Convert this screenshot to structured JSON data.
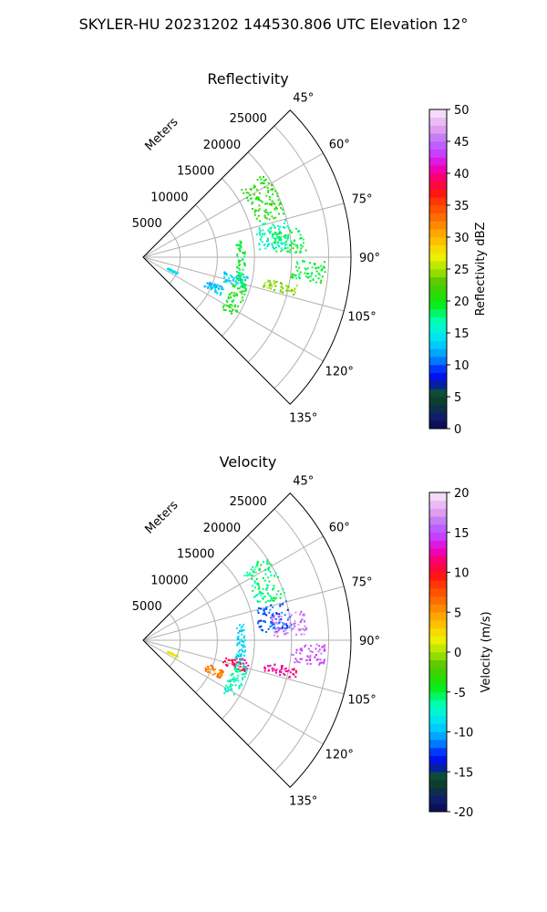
{
  "figure": {
    "suptitle": "SKYLER-HU  20231202  144530.806 UTC Elevation 12°"
  },
  "chart_data": [
    {
      "type": "polar-scatter",
      "title": "Reflectivity",
      "radial_label": "Meters",
      "radial_ticks": [
        "5000",
        "10000",
        "15000",
        "20000",
        "25000"
      ],
      "radial_tick_values": [
        5000,
        10000,
        15000,
        20000,
        25000
      ],
      "rlim": [
        0,
        28000
      ],
      "theta_range_deg": [
        45,
        135
      ],
      "theta_ticks": [
        "45°",
        "60°",
        "75°",
        "90°",
        "105°",
        "120°",
        "135°"
      ],
      "theta_tick_values": [
        45,
        60,
        75,
        90,
        105,
        120,
        135
      ],
      "colorbar": {
        "label": "Reflectivity dBZ",
        "min": 0,
        "max": 50,
        "ticks": [
          "0",
          "5",
          "10",
          "15",
          "20",
          "25",
          "30",
          "35",
          "40",
          "45",
          "50"
        ],
        "tick_values": [
          0,
          5,
          10,
          15,
          20,
          25,
          30,
          35,
          40,
          45,
          50
        ]
      },
      "echo_clusters": [
        {
          "theta": [
            74,
            86
          ],
          "r": [
            15500,
            20000
          ],
          "value": 16
        },
        {
          "theta": [
            79,
            88
          ],
          "r": [
            17500,
            22000
          ],
          "value": 19
        },
        {
          "theta": [
            91,
            98
          ],
          "r": [
            20000,
            24500
          ],
          "value": 19
        },
        {
          "theta": [
            100,
            107
          ],
          "r": [
            11000,
            14500
          ],
          "value": 14
        },
        {
          "theta": [
            110,
            116
          ],
          "r": [
            9000,
            11500
          ],
          "value": 13
        },
        {
          "theta": [
            113,
            116
          ],
          "r": [
            3500,
            5000
          ],
          "value": 14
        },
        {
          "theta": [
            80,
            104
          ],
          "r": [
            12500,
            13700
          ],
          "value": 19
        },
        {
          "theta": [
            104,
            123
          ],
          "r": [
            12500,
            14500
          ],
          "value": 20
        },
        {
          "theta": [
            55,
            73
          ],
          "r": [
            16000,
            20000
          ],
          "value": 21
        },
        {
          "theta": [
            100,
            104
          ],
          "r": [
            16500,
            21000
          ],
          "value": 24
        }
      ]
    },
    {
      "type": "polar-scatter",
      "title": "Velocity",
      "radial_label": "Meters",
      "radial_ticks": [
        "5000",
        "10000",
        "15000",
        "20000",
        "25000"
      ],
      "radial_tick_values": [
        5000,
        10000,
        15000,
        20000,
        25000
      ],
      "rlim": [
        0,
        28000
      ],
      "theta_range_deg": [
        45,
        135
      ],
      "theta_ticks": [
        "45°",
        "60°",
        "75°",
        "90°",
        "105°",
        "120°",
        "135°"
      ],
      "theta_tick_values": [
        45,
        60,
        75,
        90,
        105,
        120,
        135
      ],
      "colorbar": {
        "label": "Velocity (m/s)",
        "min": -20,
        "max": 20,
        "ticks": [
          "-20",
          "-15",
          "-10",
          "-5",
          "0",
          "5",
          "10",
          "15",
          "20"
        ],
        "tick_values": [
          -20,
          -15,
          -10,
          -5,
          0,
          5,
          10,
          15,
          20
        ]
      },
      "echo_clusters": [
        {
          "theta": [
            74,
            86
          ],
          "r": [
            15500,
            20000
          ],
          "value": -12
        },
        {
          "theta": [
            79,
            88
          ],
          "r": [
            17500,
            22000
          ],
          "value": 16
        },
        {
          "theta": [
            91,
            98
          ],
          "r": [
            20000,
            24500
          ],
          "value": 15
        },
        {
          "theta": [
            100,
            107
          ],
          "r": [
            11000,
            14500
          ],
          "value": 11
        },
        {
          "theta": [
            110,
            116
          ],
          "r": [
            9000,
            11500
          ],
          "value": 6
        },
        {
          "theta": [
            113,
            116
          ],
          "r": [
            3500,
            5000
          ],
          "value": 2
        },
        {
          "theta": [
            80,
            104
          ],
          "r": [
            12500,
            13700
          ],
          "value": -9
        },
        {
          "theta": [
            104,
            123
          ],
          "r": [
            12500,
            14500
          ],
          "value": -7
        },
        {
          "theta": [
            55,
            73
          ],
          "r": [
            16000,
            20000
          ],
          "value": -6
        },
        {
          "theta": [
            100,
            104
          ],
          "r": [
            16500,
            21000
          ],
          "value": 12
        }
      ]
    }
  ]
}
